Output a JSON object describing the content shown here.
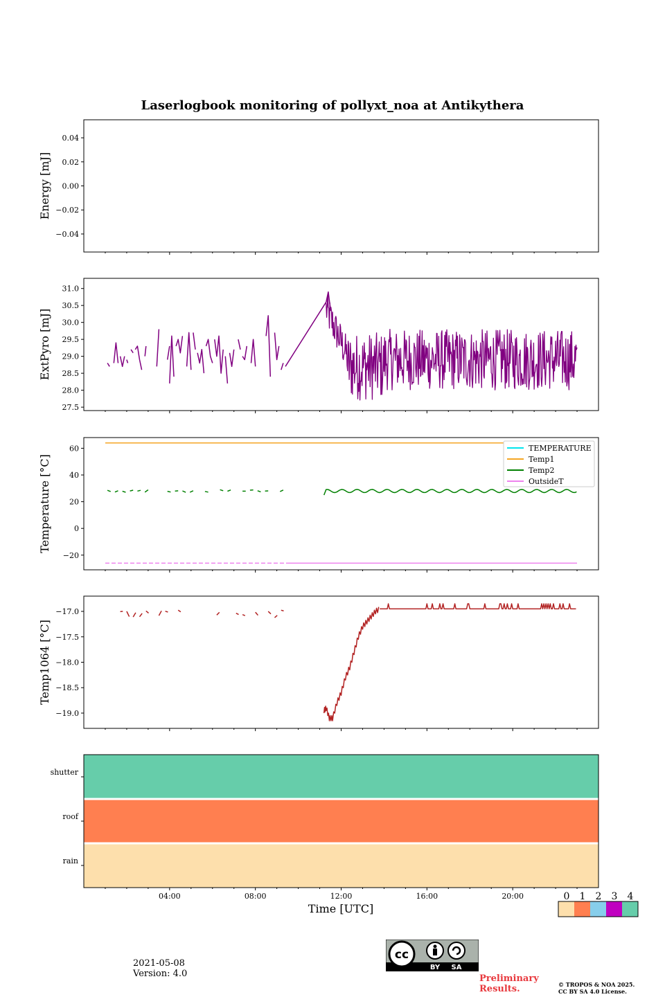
{
  "title": "Laserlogbook monitoring of pollyxt_noa at Antikythera",
  "colors": {
    "energy": "#800080",
    "extpyro": "#800080",
    "temperature": "#00e5ee",
    "temp1": "#f5a623",
    "temp2": "#008000",
    "outsideT": "#ee82ee",
    "temp1064": "#b22222",
    "state0": "#fddfac",
    "state1": "#ff7f50",
    "state2": "#87ceeb",
    "state3": "#c000c0",
    "state4": "#66cdaa"
  },
  "x_axis": {
    "label": "Time [UTC]",
    "range_hours": [
      0,
      24
    ],
    "major_ticks": [
      "04:00",
      "08:00",
      "12:00",
      "16:00",
      "20:00"
    ]
  },
  "chart_data": [
    {
      "type": "line",
      "name": "energy",
      "ylabel": "Energy [mJ]",
      "ylim": [
        -0.055,
        0.055
      ],
      "yticks": [
        "0.04",
        "0.02",
        "0.00",
        "−0.02",
        "−0.04"
      ],
      "ytick_values": [
        0.04,
        0.02,
        0.0,
        -0.02,
        -0.04
      ],
      "series": []
    },
    {
      "type": "line",
      "name": "extpyro",
      "ylabel": "ExtPyro [mJ]",
      "ylim": [
        27.4,
        31.3
      ],
      "yticks": [
        "31.0",
        "30.5",
        "30.0",
        "29.5",
        "29.0",
        "28.5",
        "28.0",
        "27.5"
      ],
      "ytick_values": [
        31.0,
        30.5,
        30.0,
        29.5,
        29.0,
        28.5,
        28.0,
        27.5
      ],
      "series": [
        {
          "segments": [
            [
              [
                1.1,
                28.8
              ],
              [
                1.2,
                28.7
              ]
            ],
            [
              [
                1.4,
                28.8
              ],
              [
                1.5,
                29.4
              ],
              [
                1.6,
                28.8
              ]
            ],
            [
              [
                1.7,
                29.0
              ],
              [
                1.8,
                28.7
              ],
              [
                1.9,
                29.0
              ]
            ],
            [
              [
                2.0,
                28.9
              ],
              [
                2.05,
                28.8
              ]
            ],
            [
              [
                2.2,
                29.2
              ],
              [
                2.3,
                29.1
              ]
            ],
            [
              [
                2.4,
                29.2
              ],
              [
                2.5,
                29.3
              ],
              [
                2.6,
                28.9
              ],
              [
                2.7,
                28.6
              ]
            ],
            [
              [
                2.85,
                29.0
              ],
              [
                2.9,
                29.3
              ]
            ],
            [
              [
                3.4,
                28.7
              ],
              [
                3.5,
                29.8
              ]
            ],
            [
              [
                3.9,
                28.9
              ],
              [
                4.0,
                29.3
              ]
            ],
            [
              [
                4.0,
                28.2
              ],
              [
                4.1,
                29.6
              ],
              [
                4.2,
                28.4
              ]
            ],
            [
              [
                4.3,
                29.3
              ],
              [
                4.4,
                29.5
              ],
              [
                4.5,
                29.1
              ],
              [
                4.6,
                29.6
              ]
            ],
            [
              [
                4.8,
                28.7
              ],
              [
                4.9,
                29.7
              ],
              [
                5.0,
                28.6
              ]
            ],
            [
              [
                5.1,
                29.7
              ],
              [
                5.2,
                29.2
              ]
            ],
            [
              [
                5.3,
                29.1
              ],
              [
                5.4,
                28.8
              ],
              [
                5.5,
                29.2
              ],
              [
                5.6,
                28.5
              ]
            ],
            [
              [
                5.7,
                29.3
              ],
              [
                5.8,
                29.5
              ],
              [
                5.9,
                29.0
              ],
              [
                6.0,
                28.8
              ]
            ],
            [
              [
                6.1,
                29.5
              ],
              [
                6.2,
                29.0
              ],
              [
                6.3,
                29.6
              ],
              [
                6.4,
                28.5
              ],
              [
                6.5,
                29.2
              ]
            ],
            [
              [
                6.6,
                29.0
              ],
              [
                6.7,
                28.2
              ]
            ],
            [
              [
                6.8,
                29.1
              ],
              [
                6.9,
                28.7
              ],
              [
                7.0,
                29.2
              ]
            ],
            [
              [
                7.2,
                29.5
              ],
              [
                7.3,
                29.2
              ]
            ],
            [
              [
                7.4,
                29.0
              ],
              [
                7.5,
                28.9
              ],
              [
                7.6,
                29.3
              ]
            ],
            [
              [
                7.8,
                28.8
              ],
              [
                7.9,
                29.5
              ],
              [
                8.0,
                28.7
              ]
            ],
            [
              [
                8.5,
                29.6
              ],
              [
                8.6,
                30.2
              ],
              [
                8.7,
                28.4
              ]
            ],
            [
              [
                8.9,
                29.7
              ],
              [
                9.0,
                28.9
              ],
              [
                9.1,
                29.3
              ]
            ],
            [
              [
                9.2,
                28.6
              ],
              [
                9.3,
                28.8
              ]
            ],
            [
              [
                9.4,
                28.7
              ],
              [
                11.3,
                30.6
              ],
              [
                11.4,
                30.9
              ],
              [
                11.5,
                30.4
              ]
            ]
          ],
          "dense_start": 11.3,
          "dense_end": 23.0,
          "dense_center": 28.9,
          "dense_spread": 0.9
        }
      ]
    },
    {
      "type": "line",
      "name": "temperature",
      "ylabel": "Temperature [°C]",
      "ylim": [
        -31,
        68
      ],
      "yticks": [
        "60",
        "40",
        "20",
        "0",
        "−20"
      ],
      "ytick_values": [
        60,
        40,
        20,
        0,
        -20
      ],
      "legend_position": "upper-right",
      "series": [
        {
          "name": "TEMPERATURE",
          "key": "temperature"
        },
        {
          "name": "Temp1",
          "key": "temp1",
          "constant": 64,
          "x_range": [
            1.0,
            23.0
          ]
        },
        {
          "name": "Temp2",
          "key": "temp2",
          "level": 28,
          "gaps": [
            [
              9.6,
              11.2
            ]
          ],
          "x_range": [
            1.0,
            23.0
          ]
        },
        {
          "name": "OutsideT",
          "key": "outsideT",
          "constant": -26,
          "x_range": [
            1.0,
            23.0
          ]
        }
      ]
    },
    {
      "type": "line",
      "name": "temp1064",
      "ylabel": "Temp1064 [°C]",
      "ylim": [
        -19.3,
        -16.7
      ],
      "yticks": [
        "−17.0",
        "−17.5",
        "−18.0",
        "−18.5",
        "−19.0"
      ],
      "ytick_values": [
        -17.0,
        -17.5,
        -18.0,
        -18.5,
        -19.0
      ],
      "series": [
        {
          "early_level": -17.05,
          "early_range": [
            1.0,
            9.3
          ],
          "ramp": [
            [
              11.2,
              -18.95
            ],
            [
              11.3,
              -18.9
            ],
            [
              11.45,
              -19.1
            ],
            [
              11.6,
              -19.1
            ],
            [
              11.8,
              -18.8
            ],
            [
              12.0,
              -18.6
            ],
            [
              12.2,
              -18.3
            ],
            [
              12.4,
              -18.1
            ],
            [
              12.6,
              -17.8
            ],
            [
              12.8,
              -17.5
            ],
            [
              13.0,
              -17.3
            ],
            [
              13.2,
              -17.2
            ],
            [
              13.4,
              -17.1
            ],
            [
              13.6,
              -17.0
            ],
            [
              13.8,
              -16.95
            ]
          ],
          "late_level": -16.95,
          "late_range": [
            13.8,
            23.0
          ]
        }
      ]
    },
    {
      "type": "heatmap",
      "name": "status",
      "rows": [
        "shutter",
        "roof",
        "rain"
      ],
      "row_values": [
        4,
        1,
        0
      ]
    }
  ],
  "colorbar": {
    "labels": [
      "0",
      "1",
      "2",
      "3",
      "4"
    ]
  },
  "footer": {
    "date": "2021-05-08",
    "version": "Version: 4.0",
    "preliminary_line1": "Preliminary",
    "preliminary_line2": "Results.",
    "copyright_line1": "© TROPOS & NOA 2025.",
    "copyright_line2": "CC BY SA 4.0 License.",
    "license_by": "BY",
    "license_sa": "SA",
    "license_cc": "cc"
  }
}
